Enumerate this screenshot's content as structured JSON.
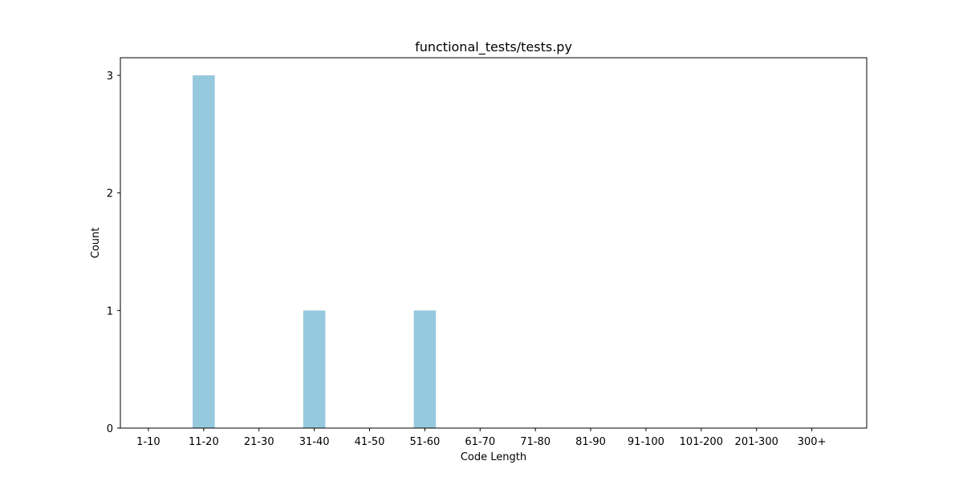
{
  "chart_data": {
    "type": "bar",
    "title": "functional_tests/tests.py",
    "xlabel": "Code Length",
    "ylabel": "Count",
    "categories": [
      "1-10",
      "11-20",
      "21-30",
      "31-40",
      "41-50",
      "51-60",
      "61-70",
      "71-80",
      "81-90",
      "91-100",
      "101-200",
      "201-300",
      "300+"
    ],
    "values": [
      0,
      3,
      0,
      1,
      0,
      1,
      0,
      0,
      0,
      0,
      0,
      0,
      0
    ],
    "yticks": [
      0,
      1,
      2,
      3
    ],
    "ylim": [
      0,
      3.15
    ],
    "bar_color": "#96c9de",
    "grid": false,
    "legend": "none"
  }
}
